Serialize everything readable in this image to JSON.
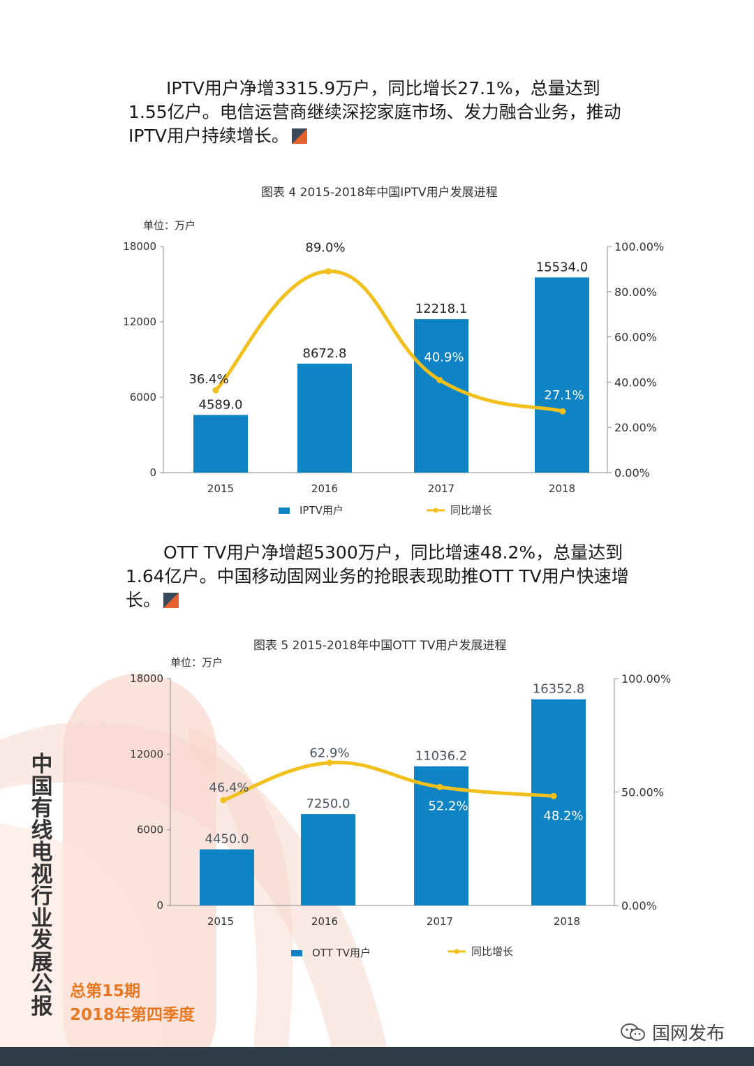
{
  "paragraph1": "IPTV用户净增3315.9万户，同比增长27.1%，总量达到1.55亿户。电信运营商继续深挖家庭市场、发力融合业务，推动IPTV用户持续增长。",
  "paragraph2": "OTT TV用户净增超5300万户，同比增速48.2%，总量达到1.64亿户。中国移动固网业务的抢眼表现助推OTT TV用户快速增长。",
  "vertical_title": "中国有线电视行业发展公报",
  "issue_number": "总第15期",
  "issue_quarter": "2018年第四季度",
  "wechat_account": "国网发布",
  "colors": {
    "bar": "#0e84c4",
    "line": "#f2c01d",
    "accent": "#e87722",
    "footer": "#2f3b46"
  },
  "chart_data": [
    {
      "type": "bar",
      "title": "图表 4 2015-2018年中国IPTV用户发展进程",
      "unit": "单位：万户",
      "categories": [
        "2015",
        "2016",
        "2017",
        "2018"
      ],
      "series": [
        {
          "name": "IPTV用户",
          "type": "bar",
          "axis": "left",
          "values": [
            4589.0,
            8672.8,
            12218.1,
            15534.0
          ],
          "labels": [
            "4589.0",
            "8672.8",
            "12218.1",
            "15534.0"
          ]
        },
        {
          "name": "同比增长",
          "type": "line",
          "axis": "right",
          "values": [
            36.4,
            89.0,
            40.9,
            27.1
          ],
          "labels": [
            "36.4%",
            "89.0%",
            "40.9%",
            "27.1%"
          ]
        }
      ],
      "y_left": {
        "ticks": [
          0,
          6000,
          12000,
          18000
        ],
        "tick_labels": [
          "0",
          "6000",
          "12000",
          "18000"
        ],
        "range": [
          0,
          18000
        ]
      },
      "y_right": {
        "ticks": [
          0,
          20,
          40,
          60,
          80,
          100
        ],
        "tick_labels": [
          "0.00%",
          "20.00%",
          "40.00%",
          "60.00%",
          "80.00%",
          "100.00%"
        ],
        "range": [
          0,
          100
        ]
      },
      "legend": "bottom"
    },
    {
      "type": "bar",
      "title": "图表 5 2015-2018年中国OTT TV用户发展进程",
      "unit": "单位：万户",
      "categories": [
        "2015",
        "2016",
        "2017",
        "2018"
      ],
      "series": [
        {
          "name": "OTT TV用户",
          "type": "bar",
          "axis": "left",
          "values": [
            4450.0,
            7250.0,
            11036.2,
            16352.8
          ],
          "labels": [
            "4450.0",
            "7250.0",
            "11036.2",
            "16352.8"
          ]
        },
        {
          "name": "同比增长",
          "type": "line",
          "axis": "right",
          "values": [
            46.4,
            62.9,
            52.2,
            48.2
          ],
          "labels": [
            "46.4%",
            "62.9%",
            "52.2%",
            "48.2%"
          ]
        }
      ],
      "y_left": {
        "ticks": [
          0,
          6000,
          12000,
          18000
        ],
        "tick_labels": [
          "0",
          "6000",
          "12000",
          "18000"
        ],
        "range": [
          0,
          18000
        ]
      },
      "y_right": {
        "ticks": [
          0,
          50,
          100
        ],
        "tick_labels": [
          "0.00%",
          "50.00%",
          "100.00%"
        ],
        "range": [
          0,
          100
        ]
      },
      "legend": "bottom"
    }
  ]
}
